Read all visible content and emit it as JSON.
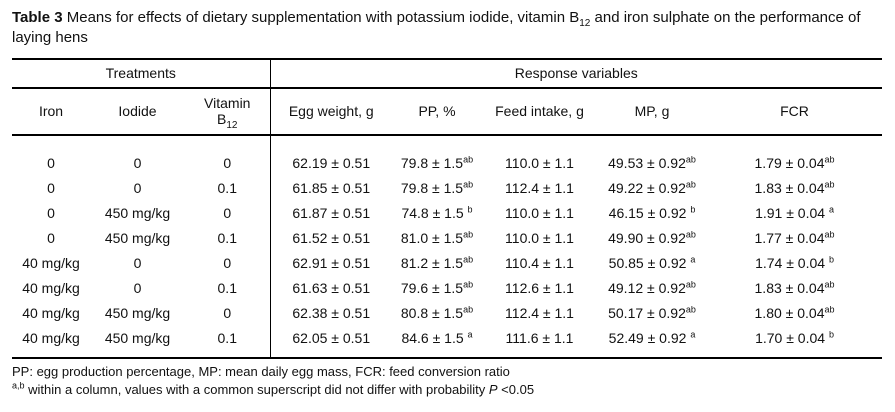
{
  "title": {
    "label": "Table 3",
    "text1": " Means for effects of dietary supplementation with potassium iodide, vitamin B",
    "sub": "12",
    "text2": " and iron sulphate on the performance of laying hens"
  },
  "table": {
    "group_headers": {
      "treatments": "Treatments",
      "response_variables": "Response variables"
    },
    "columns": {
      "iron": "Iron",
      "iodide": "Iodide",
      "vitamin_line1": "Vitamin",
      "vitamin_line2": "B",
      "vitamin_sub": "12",
      "egg_weight": "Egg weight, g",
      "pp": "PP, %",
      "feed_intake": "Feed intake, g",
      "mp": "MP, g",
      "fcr": "FCR"
    },
    "rows": [
      {
        "cells": [
          {
            "v": "0"
          },
          {
            "v": "0"
          },
          {
            "v": "0"
          },
          {
            "v": "62.19 ± 0.51"
          },
          {
            "v": "79.8 ± 1.5",
            "s": "ab"
          },
          {
            "v": "110.0 ± 1.1"
          },
          {
            "v": "49.53 ± 0.92",
            "s": "ab"
          },
          {
            "v": "1.79 ± 0.04",
            "s": "ab"
          }
        ]
      },
      {
        "cells": [
          {
            "v": "0"
          },
          {
            "v": "0"
          },
          {
            "v": "0.1"
          },
          {
            "v": "61.85 ± 0.51"
          },
          {
            "v": "79.8 ± 1.5",
            "s": "ab"
          },
          {
            "v": "112.4 ± 1.1"
          },
          {
            "v": "49.22 ± 0.92",
            "s": "ab"
          },
          {
            "v": "1.83 ± 0.04",
            "s": "ab"
          }
        ]
      },
      {
        "cells": [
          {
            "v": "0"
          },
          {
            "v": "450 mg/kg"
          },
          {
            "v": "0"
          },
          {
            "v": "61.87 ± 0.51"
          },
          {
            "v": "74.8 ± 1.5 ",
            "s": "b"
          },
          {
            "v": "110.0 ± 1.1"
          },
          {
            "v": "46.15 ± 0.92 ",
            "s": "b"
          },
          {
            "v": "1.91 ± 0.04 ",
            "s": "a"
          }
        ]
      },
      {
        "cells": [
          {
            "v": "0"
          },
          {
            "v": "450 mg/kg"
          },
          {
            "v": "0.1"
          },
          {
            "v": "61.52 ± 0.51"
          },
          {
            "v": "81.0 ± 1.5",
            "s": "ab"
          },
          {
            "v": "110.0 ± 1.1"
          },
          {
            "v": "49.90 ± 0.92",
            "s": "ab"
          },
          {
            "v": "1.77 ± 0.04",
            "s": "ab"
          }
        ]
      },
      {
        "cells": [
          {
            "v": "40 mg/kg"
          },
          {
            "v": "0"
          },
          {
            "v": "0"
          },
          {
            "v": "62.91 ± 0.51"
          },
          {
            "v": "81.2 ± 1.5",
            "s": "ab"
          },
          {
            "v": "110.4 ± 1.1"
          },
          {
            "v": "50.85 ± 0.92 ",
            "s": "a"
          },
          {
            "v": "1.74 ± 0.04 ",
            "s": "b"
          }
        ]
      },
      {
        "cells": [
          {
            "v": "40 mg/kg"
          },
          {
            "v": "0"
          },
          {
            "v": "0.1"
          },
          {
            "v": "61.63 ± 0.51"
          },
          {
            "v": "79.6 ± 1.5",
            "s": "ab"
          },
          {
            "v": "112.6 ± 1.1"
          },
          {
            "v": "49.12 ± 0.92",
            "s": "ab"
          },
          {
            "v": "1.83 ± 0.04",
            "s": "ab"
          }
        ]
      },
      {
        "cells": [
          {
            "v": "40 mg/kg"
          },
          {
            "v": "450 mg/kg"
          },
          {
            "v": "0"
          },
          {
            "v": "62.38 ± 0.51"
          },
          {
            "v": "80.8 ± 1.5",
            "s": "ab"
          },
          {
            "v": "112.4 ± 1.1"
          },
          {
            "v": "50.17 ± 0.92",
            "s": "ab"
          },
          {
            "v": "1.80 ± 0.04",
            "s": "ab"
          }
        ]
      },
      {
        "cells": [
          {
            "v": "40 mg/kg"
          },
          {
            "v": "450 mg/kg"
          },
          {
            "v": "0.1"
          },
          {
            "v": "62.05 ± 0.51"
          },
          {
            "v": "84.6 ± 1.5 ",
            "s": "a"
          },
          {
            "v": "111.6 ± 1.1"
          },
          {
            "v": "52.49 ± 0.92 ",
            "s": "a"
          },
          {
            "v": "1.70 ± 0.04 ",
            "s": "b"
          }
        ]
      }
    ]
  },
  "footnotes": {
    "abbreviations": "PP: egg production percentage, MP: mean daily egg mass, FCR: feed conversion ratio",
    "sig_sup": "a,b",
    "sig_text": " within a column, values with a common superscript did not differ with probability ",
    "sig_italic": "P",
    "sig_end": " <0.05"
  }
}
